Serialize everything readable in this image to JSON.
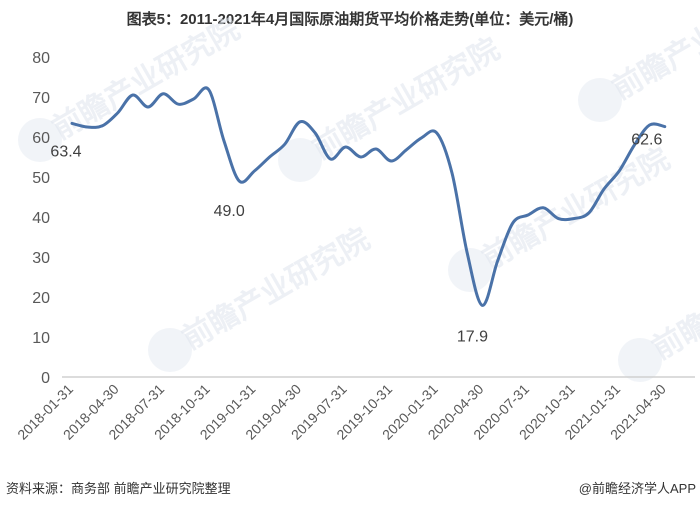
{
  "title": "图表5：2011-2021年4月国际原油期货平均价格走势(单位：美元/桶)",
  "footer": {
    "source": "资料来源：商务部 前瞻产业研究院整理",
    "credit": "@前瞻经济学人APP"
  },
  "watermark": "前瞻产业研究院",
  "colors": {
    "line": "#4a72a8",
    "axis": "#d0d0d0",
    "text": "#595959"
  },
  "chart_data": {
    "type": "line",
    "title": "图表5：2011-2021年4月国际原油期货平均价格走势(单位：美元/桶)",
    "xlabel": "",
    "ylabel": "美元/桶",
    "ylim": [
      0,
      80
    ],
    "yticks": [
      0,
      10,
      20,
      30,
      40,
      50,
      60,
      70,
      80
    ],
    "grid": false,
    "legend": null,
    "x_tick_labels": [
      "2018-01-31",
      "2018-04-30",
      "2018-07-31",
      "2018-10-31",
      "2019-01-31",
      "2019-04-30",
      "2019-07-31",
      "2019-10-31",
      "2020-01-31",
      "2020-04-30",
      "2020-07-31",
      "2020-10-31",
      "2021-01-31",
      "2021-04-30"
    ],
    "x": [
      "2018-01",
      "2018-02",
      "2018-03",
      "2018-04",
      "2018-05",
      "2018-06",
      "2018-07",
      "2018-08",
      "2018-09",
      "2018-10",
      "2018-11",
      "2018-12",
      "2019-01",
      "2019-02",
      "2019-03",
      "2019-04",
      "2019-05",
      "2019-06",
      "2019-07",
      "2019-08",
      "2019-09",
      "2019-10",
      "2019-11",
      "2019-12",
      "2020-01",
      "2020-02",
      "2020-03",
      "2020-04",
      "2020-05",
      "2020-06",
      "2020-07",
      "2020-08",
      "2020-09",
      "2020-10",
      "2020-11",
      "2020-12",
      "2021-01",
      "2021-02",
      "2021-03",
      "2021-04"
    ],
    "series": [
      {
        "name": "国际原油期货平均价格",
        "values": [
          63.4,
          62.5,
          62.8,
          66.0,
          70.5,
          67.5,
          70.8,
          68.2,
          69.5,
          71.8,
          59.0,
          49.0,
          51.5,
          55.0,
          58.2,
          63.8,
          61.0,
          54.5,
          57.5,
          55.0,
          57.0,
          54.0,
          56.8,
          59.8,
          61.0,
          51.0,
          31.0,
          17.9,
          29.0,
          38.5,
          40.5,
          42.3,
          39.6,
          39.6,
          41.0,
          47.0,
          51.5,
          58.0,
          63.0,
          62.6
        ]
      }
    ],
    "annotations": [
      {
        "x": "2018-01",
        "label": "63.4"
      },
      {
        "x": "2018-12",
        "label": "49.0"
      },
      {
        "x": "2020-04",
        "label": "17.9"
      },
      {
        "x": "2021-04",
        "label": "62.6"
      }
    ]
  }
}
